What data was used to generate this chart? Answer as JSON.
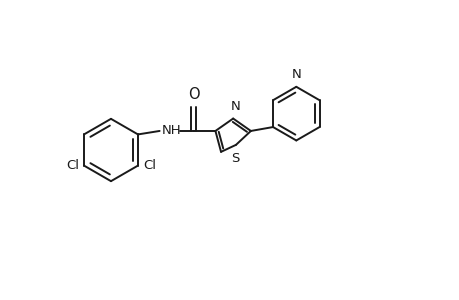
{
  "background": "#ffffff",
  "line_color": "#1a1a1a",
  "line_width": 1.4,
  "font_size": 9.5,
  "figsize": [
    4.6,
    3.0
  ],
  "dpi": 100,
  "xlim": [
    -1.0,
    9.5
  ],
  "ylim": [
    -0.5,
    5.5
  ]
}
